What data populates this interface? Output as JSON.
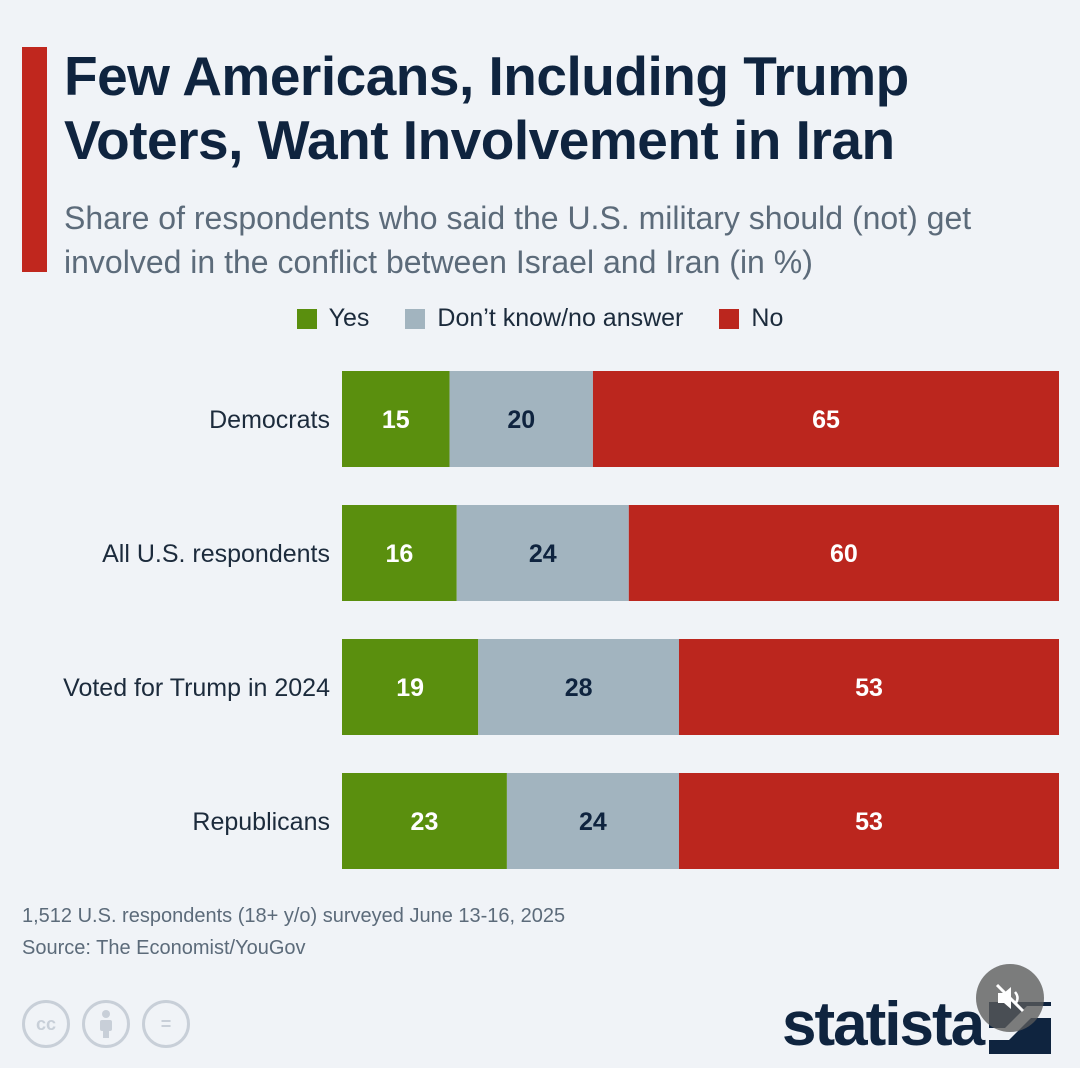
{
  "title": "Few Americans, Including Trump Voters, Want Involvement in Iran",
  "subtitle": "Share of respondents who said the U.S. military should (not) get involved in the conflict between Israel and Iran (in %)",
  "legend": [
    {
      "label": "Yes",
      "color": "#5a8f0e"
    },
    {
      "label": "Don’t know/no answer",
      "color": "#a2b4bf"
    },
    {
      "label": "No",
      "color": "#bb261e"
    }
  ],
  "chart_data": {
    "type": "bar",
    "orientation": "horizontal",
    "stacked": true,
    "xlim": [
      0,
      100
    ],
    "categories": [
      "Democrats",
      "All U.S. respondents",
      "Voted for Trump in 2024",
      "Republicans"
    ],
    "series": [
      {
        "name": "Yes",
        "color": "#5a8f0e",
        "label_color": "#ffffff",
        "values": [
          15,
          16,
          19,
          23
        ]
      },
      {
        "name": "Don’t know/no answer",
        "color": "#a2b4bf",
        "label_color": "#0f243f",
        "values": [
          20,
          24,
          28,
          24
        ]
      },
      {
        "name": "No",
        "color": "#bb261e",
        "label_color": "#ffffff",
        "values": [
          65,
          60,
          53,
          53
        ]
      }
    ]
  },
  "notes": {
    "survey": "1,512 U.S. respondents (18+ y/o) surveyed June 13-16, 2025",
    "source": "Source: The Economist/YouGov"
  },
  "license_icons": [
    {
      "name": "cc-icon",
      "text": "cc"
    },
    {
      "name": "attribution-icon",
      "text": ""
    },
    {
      "name": "no-derivatives-icon",
      "text": "="
    }
  ],
  "logo": "statista"
}
